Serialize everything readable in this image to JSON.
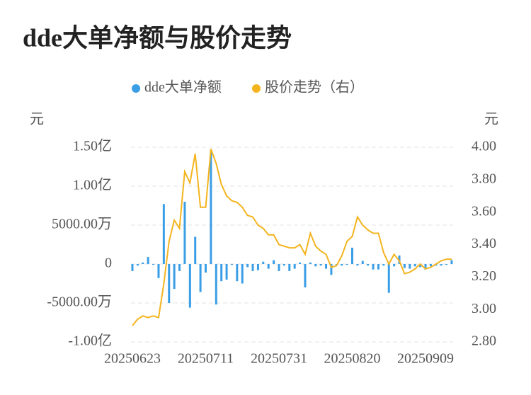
{
  "chart_data": {
    "type": "bar_line",
    "title": "dde大单净额与股价走势",
    "y_unit": "元",
    "y2_unit": "元",
    "categories": [
      "20250623",
      null,
      null,
      null,
      null,
      null,
      null,
      null,
      null,
      null,
      null,
      null,
      null,
      null,
      "20250711",
      null,
      null,
      null,
      null,
      null,
      null,
      null,
      null,
      null,
      null,
      null,
      null,
      null,
      "20250731",
      null,
      null,
      null,
      null,
      null,
      null,
      null,
      null,
      null,
      null,
      null,
      null,
      null,
      "20250820",
      null,
      null,
      null,
      null,
      null,
      null,
      null,
      null,
      null,
      null,
      null,
      null,
      null,
      "20250909",
      null,
      null,
      null,
      null,
      null
    ],
    "series": [
      {
        "name": "dde大单净额",
        "type": "bar",
        "color": "#3a9ee6",
        "axis": "y",
        "values": [
          -9000000,
          -2000000,
          2000000,
          9000000,
          -1000000,
          -18000000,
          77000000,
          -50000000,
          -32000000,
          -9000000,
          80000000,
          -56000000,
          35000000,
          -36000000,
          -11000000,
          144000000,
          -52000000,
          -22000000,
          -20000000,
          -1000000,
          -22000000,
          -25000000,
          -4000000,
          -9000000,
          -8000000,
          3000000,
          -6000000,
          5000000,
          -9000000,
          -2000000,
          -9000000,
          -6000000,
          2000000,
          -30000000,
          2000000,
          -3000000,
          -2000000,
          -6000000,
          -14000000,
          -1000000,
          -2000000,
          -1000000,
          21000000,
          -2000000,
          4000000,
          -2000000,
          -7000000,
          -7000000,
          -2000000,
          -37000000,
          -3000000,
          11000000,
          -5000000,
          -6000000,
          -3000000,
          -4000000,
          -7000000,
          -3000000,
          -2000000,
          -2000000,
          -1000000,
          5000000
        ]
      },
      {
        "name": "股价走势（右）",
        "type": "line",
        "color": "#f4b41f",
        "axis": "y2",
        "values": [
          2.9,
          2.94,
          2.96,
          2.95,
          2.96,
          2.95,
          3.16,
          3.42,
          3.55,
          3.5,
          3.85,
          3.78,
          3.96,
          3.63,
          3.63,
          3.99,
          3.9,
          3.77,
          3.7,
          3.67,
          3.66,
          3.63,
          3.58,
          3.57,
          3.52,
          3.5,
          3.46,
          3.46,
          3.4,
          3.39,
          3.38,
          3.38,
          3.4,
          3.34,
          3.47,
          3.39,
          3.36,
          3.34,
          3.26,
          3.27,
          3.33,
          3.42,
          3.45,
          3.57,
          3.52,
          3.49,
          3.47,
          3.47,
          3.35,
          3.28,
          3.34,
          3.3,
          3.22,
          3.23,
          3.25,
          3.28,
          3.25,
          3.26,
          3.28,
          3.3,
          3.31,
          3.31
        ]
      }
    ],
    "ylim": [
      -100000000,
      150000000
    ],
    "yticks": [
      {
        "value": -100000000,
        "label": "-1.00亿"
      },
      {
        "value": -50000000,
        "label": "-5000.00万"
      },
      0,
      {
        "value": 50000000,
        "label": "5000.00万"
      },
      {
        "value": 100000000,
        "label": "1.00亿"
      },
      {
        "value": 150000000,
        "label": "1.50亿"
      }
    ],
    "y2lim": [
      2.8,
      4.0
    ],
    "y2ticks": [
      {
        "value": 2.8,
        "label": "2.80"
      },
      {
        "value": 3.0,
        "label": "3.00"
      },
      {
        "value": 3.2,
        "label": "3.20"
      },
      {
        "value": 3.4,
        "label": "3.40"
      },
      {
        "value": 3.6,
        "label": "3.60"
      },
      {
        "value": 3.8,
        "label": "3.80"
      },
      {
        "value": 4.0,
        "label": "4.00"
      }
    ],
    "grid": true
  }
}
